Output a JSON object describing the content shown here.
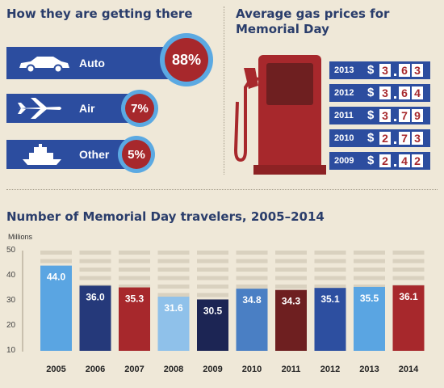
{
  "transport": {
    "title": "How they are getting there",
    "items": [
      {
        "label": "Auto",
        "value": "88%",
        "icon": "car-icon"
      },
      {
        "label": "Air",
        "value": "7%",
        "icon": "airplane-icon"
      },
      {
        "label": "Other",
        "value": "5%",
        "icon": "ship-icon"
      }
    ]
  },
  "gas": {
    "title_line1": "Average gas prices for",
    "title_line2": "Memorial Day",
    "rows": [
      {
        "year": "2013",
        "price": "3.63"
      },
      {
        "year": "2012",
        "price": "3.64"
      },
      {
        "year": "2011",
        "price": "3.79"
      },
      {
        "year": "2010",
        "price": "2.73"
      },
      {
        "year": "2009",
        "price": "2.42"
      }
    ],
    "currency": "$"
  },
  "travelers": {
    "title": "Number of Memorial Day travelers, 2005–2014",
    "units": "Millions"
  },
  "colors": {
    "navy": "#2c4d9f",
    "red": "#a7282c",
    "light_blue": "#5ba9e2",
    "background": "#efe8d8"
  },
  "chart_data": [
    {
      "type": "bar",
      "title": "Number of Memorial Day travelers, 2005–2014",
      "ylabel": "Millions",
      "ylim": [
        10,
        50
      ],
      "yticks": [
        10,
        20,
        30,
        40,
        50
      ],
      "categories": [
        "2005",
        "2006",
        "2007",
        "2008",
        "2009",
        "2010",
        "2011",
        "2012",
        "2013",
        "2014"
      ],
      "values": [
        44.0,
        36.0,
        35.3,
        31.6,
        30.5,
        34.8,
        34.3,
        35.1,
        35.5,
        36.1
      ],
      "value_labels": [
        "44.0",
        "36.0",
        "35.3",
        "31.6",
        "30.5",
        "34.8",
        "34.3",
        "35.1",
        "35.5",
        "36.1"
      ],
      "bar_colors": [
        "#5aa5e2",
        "#25397a",
        "#a7282c",
        "#8fc1ea",
        "#1c2554",
        "#4a7fc4",
        "#6e1f20",
        "#2d4fa0",
        "#5aa5e2",
        "#a7282c"
      ]
    },
    {
      "type": "bar",
      "title": "How they are getting there",
      "categories": [
        "Auto",
        "Air",
        "Other"
      ],
      "values": [
        88,
        7,
        5
      ]
    },
    {
      "type": "table",
      "title": "Average gas prices for Memorial Day",
      "categories": [
        "2013",
        "2012",
        "2011",
        "2010",
        "2009"
      ],
      "values": [
        3.63,
        3.64,
        3.79,
        2.73,
        2.42
      ]
    }
  ]
}
